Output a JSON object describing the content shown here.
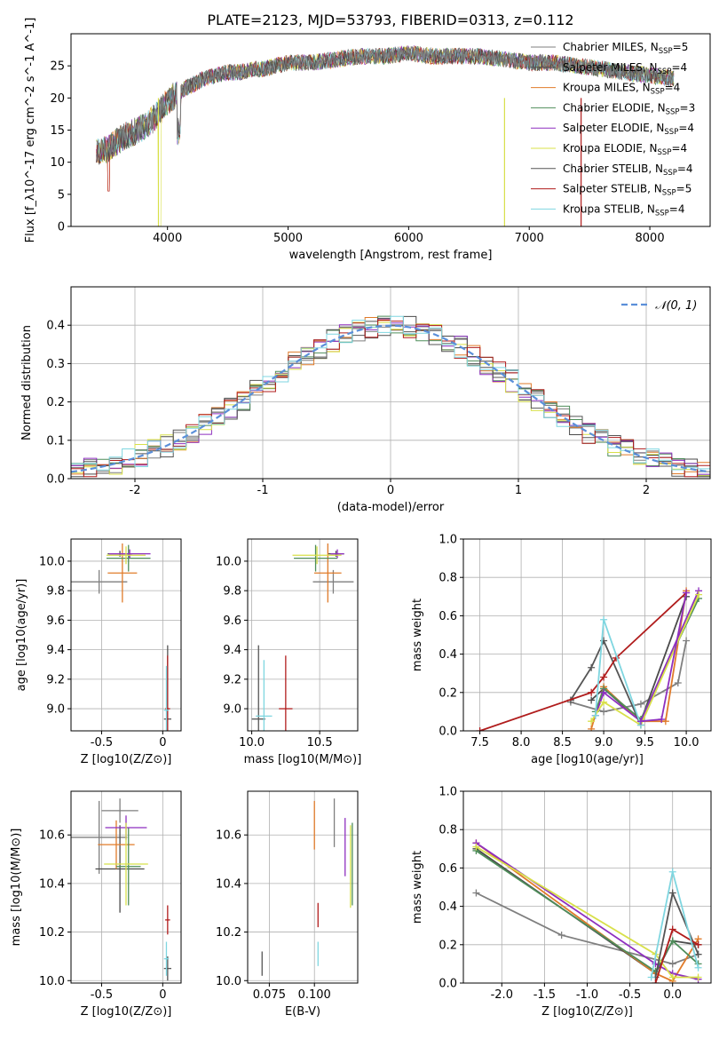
{
  "title": "PLATE=2123, MJD=53793, FIBERID=0313, z=0.112",
  "models": [
    {
      "name": "Chabrier MILES",
      "nssp": "5",
      "color": "#7f7f7f"
    },
    {
      "name": "Salpeter MILES",
      "nssp": "4",
      "color": "#4a4a4a"
    },
    {
      "name": "Kroupa MILES",
      "nssp": "4",
      "color": "#e07b2a"
    },
    {
      "name": "Chabrier ELODIE",
      "nssp": "3",
      "color": "#4e8d5a"
    },
    {
      "name": "Salpeter ELODIE",
      "nssp": "4",
      "color": "#8e2fbf"
    },
    {
      "name": "Kroupa ELODIE",
      "nssp": "4",
      "color": "#d8e04a"
    },
    {
      "name": "Chabrier STELIB",
      "nssp": "4",
      "color": "#555555"
    },
    {
      "name": "Salpeter STELIB",
      "nssp": "5",
      "color": "#b01c1c"
    },
    {
      "name": "Kroupa STELIB",
      "nssp": "4",
      "color": "#7fd6e0"
    }
  ],
  "chart_data": [
    {
      "id": "spectrum",
      "type": "line",
      "xlabel": "wavelength [Angstrom, rest frame]",
      "ylabel": "Flux [f_λ10^-17 erg cm^-2 s^-1 A^-1]",
      "xlim": [
        3200,
        8500
      ],
      "ylim": [
        0,
        30
      ],
      "xticks": [
        4000,
        5000,
        6000,
        7000,
        8000
      ],
      "yticks": [
        0,
        5,
        10,
        15,
        20,
        25
      ],
      "x": [
        3410,
        3500,
        3600,
        3700,
        3800,
        3900,
        4000,
        4100,
        4200,
        4300,
        4400,
        4500,
        4600,
        4700,
        4800,
        4900,
        5000,
        5200,
        5400,
        5600,
        5800,
        6000,
        6200,
        6400,
        6600,
        6800,
        7000,
        7200,
        7400,
        7600,
        7800,
        8000,
        8200
      ],
      "y": [
        11.5,
        12,
        13.5,
        14.5,
        15.5,
        17,
        19.5,
        21,
        22,
        23,
        23.5,
        24,
        24,
        24.5,
        24.5,
        25,
        25.5,
        25.5,
        26,
        26.5,
        26.5,
        27,
        26.5,
        26.5,
        26.5,
        26,
        25.5,
        25.5,
        25,
        24.5,
        24,
        23.5,
        23
      ],
      "legend_position": "upper right"
    },
    {
      "id": "residuals",
      "type": "bar",
      "xlabel": "(data-model)/error",
      "ylabel": "Normed distribution",
      "xlim": [
        -2.5,
        2.5
      ],
      "ylim": [
        0,
        0.5
      ],
      "xticks": [
        -2,
        -1,
        0,
        1,
        2
      ],
      "yticks": [
        0.0,
        0.1,
        0.2,
        0.3,
        0.4
      ],
      "grid": true,
      "bin_width": 0.1,
      "gaussian_label": "𝒩(0, 1)",
      "legend_position": "upper right"
    },
    {
      "id": "age-vs-z",
      "type": "scatter",
      "xlabel": "Z [log10(Z/Z⊙)]",
      "ylabel": "age [log10(age/yr)]",
      "xlim": [
        -0.75,
        0.15
      ],
      "ylim": [
        8.85,
        10.15
      ],
      "xticks": [
        -0.5,
        0.0
      ],
      "yticks": [
        9.0,
        9.2,
        9.4,
        9.6,
        9.8,
        10.0
      ],
      "grid": true,
      "points": [
        {
          "x": -0.52,
          "y": 9.86,
          "xerr": 0.23,
          "yerr": 0.08,
          "model": 0
        },
        {
          "x": -0.35,
          "y": 10.05,
          "xerr": 0.1,
          "yerr": 0.02,
          "model": 1
        },
        {
          "x": -0.33,
          "y": 9.92,
          "xerr": 0.12,
          "yerr": 0.2,
          "model": 2
        },
        {
          "x": -0.28,
          "y": 10.02,
          "xerr": 0.18,
          "yerr": 0.09,
          "model": 3
        },
        {
          "x": -0.27,
          "y": 10.05,
          "xerr": 0.17,
          "yerr": 0.03,
          "model": 4
        },
        {
          "x": -0.3,
          "y": 10.04,
          "xerr": 0.16,
          "yerr": 0.06,
          "model": 5
        },
        {
          "x": 0.04,
          "y": 8.93,
          "xerr": 0.03,
          "yerr": 0.5,
          "model": 6
        },
        {
          "x": 0.04,
          "y": 9.0,
          "xerr": 0.02,
          "yerr": 0.36,
          "model": 7
        },
        {
          "x": 0.03,
          "y": 8.99,
          "xerr": 0.02,
          "yerr": 0.3,
          "model": 8
        }
      ]
    },
    {
      "id": "age-vs-mass",
      "type": "scatter",
      "xlabel": "mass [log10(M/M⊙)]",
      "xlim": [
        9.97,
        10.78
      ],
      "ylim": [
        8.85,
        10.15
      ],
      "xticks": [
        10.0,
        10.5
      ],
      "yticks": [
        9.0,
        9.2,
        9.4,
        9.6,
        9.8,
        10.0
      ],
      "grid": true,
      "points": [
        {
          "x": 10.6,
          "y": 9.86,
          "xerr": 0.15,
          "yerr": 0.08,
          "model": 0
        },
        {
          "x": 10.62,
          "y": 10.05,
          "xerr": 0.06,
          "yerr": 0.02,
          "model": 1
        },
        {
          "x": 10.56,
          "y": 9.92,
          "xerr": 0.1,
          "yerr": 0.2,
          "model": 2
        },
        {
          "x": 10.47,
          "y": 10.02,
          "xerr": 0.16,
          "yerr": 0.09,
          "model": 3
        },
        {
          "x": 10.63,
          "y": 10.05,
          "xerr": 0.05,
          "yerr": 0.03,
          "model": 4
        },
        {
          "x": 10.48,
          "y": 10.04,
          "xerr": 0.18,
          "yerr": 0.06,
          "model": 5
        },
        {
          "x": 10.05,
          "y": 8.93,
          "xerr": 0.05,
          "yerr": 0.5,
          "model": 6
        },
        {
          "x": 10.25,
          "y": 9.0,
          "xerr": 0.05,
          "yerr": 0.36,
          "model": 7
        },
        {
          "x": 10.09,
          "y": 8.95,
          "xerr": 0.06,
          "yerr": 0.38,
          "model": 8
        }
      ]
    },
    {
      "id": "mass-weight-vs-age",
      "type": "line",
      "xlabel": "age [log10(age/yr)]",
      "ylabel": "mass weight",
      "xlim": [
        7.3,
        10.3
      ],
      "ylim": [
        0,
        1
      ],
      "xticks": [
        7.5,
        8.0,
        8.5,
        9.0,
        9.5,
        10.0
      ],
      "yticks": [
        0.0,
        0.2,
        0.4,
        0.6,
        0.8,
        1.0
      ],
      "grid": true,
      "series": [
        {
          "model": 0,
          "x": [
            8.6,
            9.0,
            9.45,
            9.9,
            10.0
          ],
          "y": [
            0.15,
            0.1,
            0.14,
            0.25,
            0.47
          ]
        },
        {
          "model": 1,
          "x": [
            8.85,
            9.0,
            9.45,
            10.0
          ],
          "y": [
            0.16,
            0.22,
            0.05,
            0.7
          ]
        },
        {
          "model": 2,
          "x": [
            8.85,
            9.0,
            9.45,
            9.75,
            10.0
          ],
          "y": [
            0.01,
            0.23,
            0.05,
            0.05,
            0.73
          ]
        },
        {
          "model": 3,
          "x": [
            8.9,
            9.0,
            9.45,
            10.15
          ],
          "y": [
            0.1,
            0.22,
            0.06,
            0.69
          ]
        },
        {
          "model": 4,
          "x": [
            8.9,
            9.0,
            9.45,
            10.15
          ],
          "y": [
            0.08,
            0.2,
            0.05,
            0.73
          ]
        },
        {
          "model": 5,
          "x": [
            8.85,
            9.0,
            9.45,
            10.15
          ],
          "y": [
            0.05,
            0.15,
            0.03,
            0.71
          ]
        },
        {
          "model": 6,
          "x": [
            8.6,
            8.85,
            9.0,
            9.45
          ],
          "y": [
            0.16,
            0.33,
            0.47,
            0.03
          ]
        },
        {
          "model": 7,
          "x": [
            7.5,
            8.85,
            9.0,
            9.15,
            10.0
          ],
          "y": [
            0.0,
            0.2,
            0.28,
            0.38,
            0.72
          ]
        },
        {
          "model": 8,
          "x": [
            8.9,
            9.0,
            9.45
          ],
          "y": [
            0.08,
            0.58,
            0.03
          ]
        },
        {
          "model": 4,
          "x": [
            9.45,
            9.7,
            10.0
          ],
          "y": [
            0.05,
            0.06,
            0.72
          ]
        }
      ]
    },
    {
      "id": "mass-vs-z",
      "type": "scatter",
      "xlabel": "Z [log10(Z/Z⊙)]",
      "ylabel": "mass [log10(M/M⊙)]",
      "xlim": [
        -0.75,
        0.15
      ],
      "ylim": [
        9.99,
        10.78
      ],
      "xticks": [
        -0.5,
        0.0
      ],
      "yticks": [
        10.0,
        10.2,
        10.4,
        10.6
      ],
      "grid": true,
      "points": [
        {
          "x": -0.52,
          "y": 10.59,
          "xerr": 0.23,
          "yerr": 0.15,
          "model": 0
        },
        {
          "x": -0.35,
          "y": 10.46,
          "xerr": 0.2,
          "yerr": 0.18,
          "model": 1
        },
        {
          "x": -0.38,
          "y": 10.56,
          "xerr": 0.15,
          "yerr": 0.1,
          "model": 2
        },
        {
          "x": -0.28,
          "y": 10.47,
          "xerr": 0.1,
          "yerr": 0.16,
          "model": 3
        },
        {
          "x": -0.3,
          "y": 10.63,
          "xerr": 0.17,
          "yerr": 0.05,
          "model": 4
        },
        {
          "x": -0.3,
          "y": 10.48,
          "xerr": 0.18,
          "yerr": 0.17,
          "model": 5
        },
        {
          "x": 0.04,
          "y": 10.05,
          "xerr": 0.03,
          "yerr": 0.05,
          "model": 6
        },
        {
          "x": 0.04,
          "y": 10.25,
          "xerr": 0.02,
          "yerr": 0.06,
          "model": 7
        },
        {
          "x": 0.03,
          "y": 10.09,
          "xerr": 0.02,
          "yerr": 0.07,
          "model": 8
        },
        {
          "x": -0.35,
          "y": 10.7,
          "xerr": 0.15,
          "yerr": 0.05,
          "model": 0
        }
      ]
    },
    {
      "id": "mass-vs-ebv",
      "type": "scatter",
      "xlabel": "E(B-V)",
      "xlim": [
        0.063,
        0.124
      ],
      "ylim": [
        9.99,
        10.78
      ],
      "xticks": [
        0.075,
        0.1
      ],
      "yticks": [
        10.0,
        10.2,
        10.4,
        10.6
      ],
      "grid": true,
      "points": [
        {
          "x": 0.071,
          "y": 10.07,
          "yerr": 0.05,
          "model": 6
        },
        {
          "x": 0.1,
          "y": 10.64,
          "yerr": 0.1,
          "model": 2
        },
        {
          "x": 0.102,
          "y": 10.27,
          "yerr": 0.05,
          "model": 7
        },
        {
          "x": 0.102,
          "y": 10.11,
          "yerr": 0.05,
          "model": 8
        },
        {
          "x": 0.111,
          "y": 10.65,
          "yerr": 0.1,
          "model": 0
        },
        {
          "x": 0.117,
          "y": 10.55,
          "yerr": 0.12,
          "model": 4
        },
        {
          "x": 0.12,
          "y": 10.47,
          "yerr": 0.17,
          "model": 5
        },
        {
          "x": 0.121,
          "y": 10.48,
          "yerr": 0.17,
          "model": 3
        }
      ]
    },
    {
      "id": "mass-weight-vs-z",
      "type": "line",
      "xlabel": "Z [log10(Z/Z⊙)]",
      "ylabel": "mass weight",
      "xlim": [
        -2.45,
        0.45
      ],
      "ylim": [
        0,
        1
      ],
      "xticks": [
        -2.0,
        -1.5,
        -1.0,
        -0.5,
        0.0
      ],
      "yticks": [
        0.0,
        0.2,
        0.4,
        0.6,
        0.8,
        1.0
      ],
      "grid": true,
      "series": [
        {
          "model": 0,
          "x": [
            -2.3,
            -1.3,
            0.0,
            0.3
          ],
          "y": [
            0.47,
            0.25,
            0.1,
            0.15
          ]
        },
        {
          "model": 1,
          "x": [
            -2.3,
            -0.2,
            0.0,
            0.3
          ],
          "y": [
            0.7,
            0.05,
            0.22,
            0.2
          ]
        },
        {
          "model": 2,
          "x": [
            -2.3,
            -0.2,
            0.0,
            0.3
          ],
          "y": [
            0.73,
            0.05,
            0.01,
            0.23
          ]
        },
        {
          "model": 3,
          "x": [
            -2.3,
            -0.2,
            0.0,
            0.3
          ],
          "y": [
            0.69,
            0.06,
            0.22,
            0.1
          ]
        },
        {
          "model": 4,
          "x": [
            -2.3,
            -0.2,
            0.0,
            0.3
          ],
          "y": [
            0.73,
            0.1,
            0.05,
            0.02
          ]
        },
        {
          "model": 5,
          "x": [
            -2.3,
            -0.2,
            0.0,
            0.3
          ],
          "y": [
            0.71,
            0.15,
            0.03,
            0.03
          ]
        },
        {
          "model": 6,
          "x": [
            -0.2,
            0.0,
            0.3
          ],
          "y": [
            0.03,
            0.47,
            0.15
          ]
        },
        {
          "model": 7,
          "x": [
            -0.2,
            0.0,
            0.3
          ],
          "y": [
            0.0,
            0.28,
            0.2
          ]
        },
        {
          "model": 8,
          "x": [
            -0.25,
            0.0,
            0.3
          ],
          "y": [
            0.03,
            0.58,
            0.08
          ]
        }
      ]
    }
  ]
}
